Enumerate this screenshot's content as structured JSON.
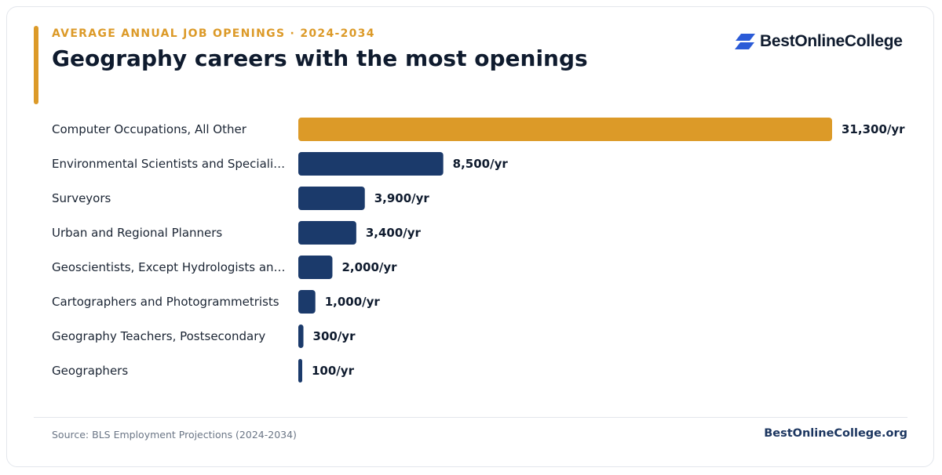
{
  "header": {
    "kicker": "AVERAGE ANNUAL JOB OPENINGS · 2024-2034",
    "title": "Geography careers with the most openings"
  },
  "brand": {
    "name": "BestOnlineCollege",
    "logo_icon": "parallelogram-logo-icon",
    "logo_color": "#2b5bd7"
  },
  "colors": {
    "accent": "#dc9a28",
    "highlight_bar": "#dc9a28",
    "bar": "#1b3a6b",
    "title": "#0f1b2e"
  },
  "chart_data": {
    "type": "bar",
    "orientation": "horizontal",
    "categories": [
      "Computer Occupations, All Other",
      "Environmental Scientists and Speciali…",
      "Surveyors",
      "Urban and Regional Planners",
      "Geoscientists, Except Hydrologists an…",
      "Cartographers and Photogrammetrists",
      "Geography Teachers, Postsecondary",
      "Geographers"
    ],
    "values": [
      31300,
      8500,
      3900,
      3400,
      2000,
      1000,
      300,
      100
    ],
    "value_labels": [
      "31,300/yr",
      "8,500/yr",
      "3,900/yr",
      "3,400/yr",
      "2,000/yr",
      "1,000/yr",
      "300/yr",
      "100/yr"
    ],
    "highlight_index": 0,
    "xlim": [
      0,
      31300
    ],
    "grid": false,
    "legend": "none"
  },
  "footer": {
    "source": "Source: BLS Employment Projections (2024-2034)",
    "site": "BestOnlineCollege.org"
  }
}
